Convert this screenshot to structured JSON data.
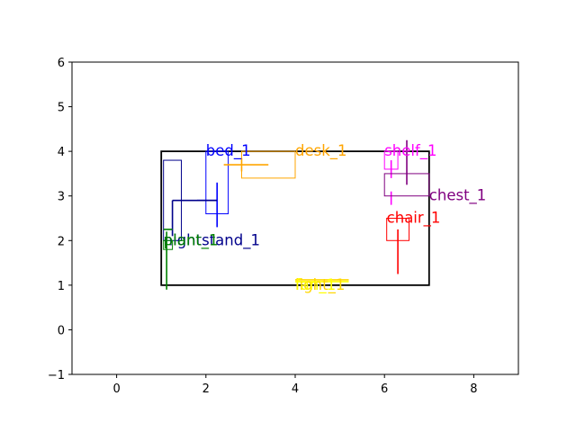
{
  "chart_data": {
    "type": "scatter",
    "title": "",
    "xlabel": "",
    "ylabel": "",
    "xlim": [
      -1,
      9
    ],
    "ylim": [
      -1,
      6
    ],
    "x_ticks": [
      0,
      2,
      4,
      6,
      8
    ],
    "y_ticks": [
      -1,
      0,
      1,
      2,
      3,
      4,
      5,
      6
    ],
    "grid": false,
    "room": {
      "x0": 1.0,
      "y0": 1.0,
      "x1": 7.0,
      "y1": 4.0,
      "color": "#000000"
    },
    "objects": [
      {
        "name": "bed_1",
        "color": "#0000ff",
        "box": {
          "x0": 2.0,
          "y0": 2.6,
          "x1": 2.5,
          "y1": 4.0
        },
        "label_pos": [
          2.0,
          4.0
        ],
        "lines": [
          [
            2.25,
            2.3,
            2.25,
            3.3
          ],
          [
            1.8,
            2.9,
            2.25,
            2.9
          ]
        ]
      },
      {
        "name": "desk_1",
        "color": "#ffa500",
        "box": {
          "x0": 2.8,
          "y0": 3.4,
          "x1": 4.0,
          "y1": 4.0
        },
        "label_pos": [
          4.0,
          4.0
        ],
        "lines": [
          [
            2.4,
            3.7,
            3.4,
            3.7
          ],
          [
            2.8,
            3.55,
            2.8,
            3.85
          ]
        ]
      },
      {
        "name": "shelf_1",
        "color": "#ff00ff",
        "box": {
          "x0": 6.0,
          "y0": 3.6,
          "x1": 6.3,
          "y1": 4.0
        },
        "label_pos": [
          6.0,
          4.0
        ],
        "lines": [
          [
            6.15,
            3.4,
            6.15,
            3.8
          ],
          [
            6.15,
            2.8,
            6.15,
            3.1
          ]
        ]
      },
      {
        "name": "chest_1",
        "color": "#800080",
        "box": {
          "x0": 6.0,
          "y0": 3.0,
          "x1": 7.0,
          "y1": 3.5
        },
        "label_pos": [
          7.0,
          3.0
        ],
        "lines": [
          [
            6.5,
            3.25,
            6.5,
            4.25
          ]
        ]
      },
      {
        "name": "chair_1",
        "color": "#ff0000",
        "box": {
          "x0": 6.05,
          "y0": 2.0,
          "x1": 6.55,
          "y1": 2.5
        },
        "label_pos": [
          6.05,
          2.5
        ],
        "lines": [
          [
            6.3,
            1.25,
            6.3,
            2.25
          ]
        ]
      },
      {
        "name": "nightstand_1",
        "color": "#00008b",
        "box": {
          "x0": 1.05,
          "y0": 2.0,
          "x1": 1.45,
          "y1": 3.8
        },
        "label_pos": [
          1.05,
          2.0
        ],
        "lines": [
          [
            1.25,
            2.1,
            1.25,
            2.9
          ],
          [
            1.25,
            2.9,
            2.25,
            2.9
          ]
        ]
      },
      {
        "name": "plant_1",
        "color": "#008000",
        "box": {
          "x0": 1.05,
          "y0": 1.8,
          "x1": 1.25,
          "y1": 2.0
        },
        "label_pos": [
          1.05,
          2.0
        ],
        "lines": [
          [
            1.12,
            0.9,
            1.12,
            2.2
          ],
          [
            1.05,
            2.25,
            1.25,
            2.25
          ]
        ]
      },
      {
        "name": "light_1",
        "color": "#ffd700",
        "box": null,
        "label_pos": [
          4.0,
          1.0
        ],
        "lines": [
          [
            4.0,
            1.12,
            5.2,
            1.12
          ]
        ]
      },
      {
        "name": "fan_1",
        "color": "#ffff00",
        "box": null,
        "label_pos": [
          4.0,
          1.0
        ],
        "lines": [
          [
            4.0,
            1.08,
            5.2,
            1.08
          ]
        ]
      }
    ]
  }
}
